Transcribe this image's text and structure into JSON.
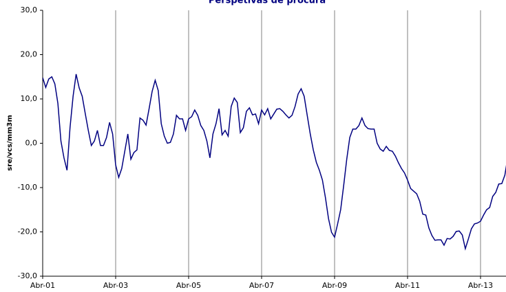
{
  "chart_data": {
    "type": "line",
    "title": "Perspetivas de procura",
    "y_label": "sre/vcs/mm3m",
    "categories": [
      "Abr-01",
      null,
      null,
      null,
      null,
      null,
      null,
      null,
      null,
      null,
      null,
      null,
      null,
      null,
      null,
      null,
      null,
      null,
      null,
      null,
      null,
      null,
      null,
      null,
      "Abr-03",
      null,
      null,
      null,
      null,
      null,
      null,
      null,
      null,
      null,
      null,
      null,
      null,
      null,
      null,
      null,
      null,
      null,
      null,
      null,
      null,
      null,
      null,
      null,
      "Abr-05",
      null,
      null,
      null,
      null,
      null,
      null,
      null,
      null,
      null,
      null,
      null,
      null,
      null,
      null,
      null,
      null,
      null,
      null,
      null,
      null,
      null,
      null,
      null,
      "Abr-07",
      null,
      null,
      null,
      null,
      null,
      null,
      null,
      null,
      null,
      null,
      null,
      null,
      null,
      null,
      null,
      null,
      null,
      null,
      null,
      null,
      null,
      null,
      null,
      "Abr-09",
      null,
      null,
      null,
      null,
      null,
      null,
      null,
      null,
      null,
      null,
      null,
      null,
      null,
      null,
      null,
      null,
      null,
      null,
      null,
      null,
      null,
      null,
      null,
      "Abr-11",
      null,
      null,
      null,
      null,
      null,
      null,
      null,
      null,
      null,
      null,
      null,
      null,
      null,
      null,
      null,
      null,
      null,
      null,
      null,
      null,
      null,
      null,
      null,
      "Abr-13",
      null,
      null,
      null,
      null,
      null,
      null,
      null,
      null,
      null
    ],
    "series": [
      {
        "color": "#000080",
        "values": [
          14.8,
          12.6,
          14.5,
          15,
          13.4,
          9,
          0.5,
          -3.3,
          -6.1,
          3.6,
          10.6,
          15.6,
          12.5,
          10.6,
          6.7,
          2.9,
          -0.5,
          0.5,
          2.9,
          -0.5,
          -0.5,
          1.3,
          4.7,
          2.1,
          -4.9,
          -7.7,
          -5.7,
          -1.8,
          2.1,
          -3.6,
          -2.1,
          -1.5,
          5.7,
          5.2,
          4.1,
          7.8,
          11.7,
          14.2,
          11.9,
          4.4,
          1.6,
          0,
          0.2,
          2.1,
          6.3,
          5.5,
          5.5,
          2.9,
          5.5,
          6,
          7.5,
          6.3,
          4,
          2.9,
          0.5,
          -3.3,
          2.1,
          4.4,
          7.8,
          1.9,
          2.9,
          1.6,
          8.3,
          10.2,
          9.2,
          2.4,
          3.5,
          7.2,
          8,
          6.4,
          6.6,
          4.4,
          7.5,
          6.4,
          7.8,
          5.5,
          6.6,
          7.7,
          7.8,
          7.2,
          6.4,
          5.7,
          6.3,
          8.3,
          11.1,
          12.3,
          10.6,
          6.3,
          2.1,
          -1.5,
          -4.3,
          -6.1,
          -8.3,
          -12.3,
          -17,
          -20.1,
          -21.2,
          -18.2,
          -15,
          -9.5,
          -3.6,
          1.3,
          3.2,
          3.2,
          4,
          5.7,
          4,
          3.3,
          3.2,
          3.2,
          0,
          -1.3,
          -1.8,
          -0.7,
          -1.6,
          -1.8,
          -2.9,
          -4.4,
          -5.7,
          -6.7,
          -8.3,
          -10.2,
          -10.8,
          -11.4,
          -13.1,
          -16,
          -16.2,
          -19.1,
          -20.8,
          -21.9,
          -21.8,
          -21.8,
          -23,
          -21.5,
          -21.6,
          -21,
          -19.9,
          -19.8,
          -20.7,
          -23.8,
          -21.6,
          -19.3,
          -18.2,
          -18,
          -17.6,
          -16.2,
          -15,
          -14.5,
          -12,
          -11.1,
          -9.2,
          -9.1,
          -7.2,
          -3
        ]
      }
    ],
    "ylim": [
      -30,
      30
    ],
    "yticks": [
      {
        "value": -30,
        "label": "-30,0"
      },
      {
        "value": -20,
        "label": "-20,0"
      },
      {
        "value": -10,
        "label": "-10,0"
      },
      {
        "value": 0,
        "label": "0,0"
      },
      {
        "value": 10,
        "label": "10,0"
      },
      {
        "value": 20,
        "label": "20,0"
      },
      {
        "value": 30,
        "label": "30,0"
      }
    ],
    "x_grid": true
  }
}
